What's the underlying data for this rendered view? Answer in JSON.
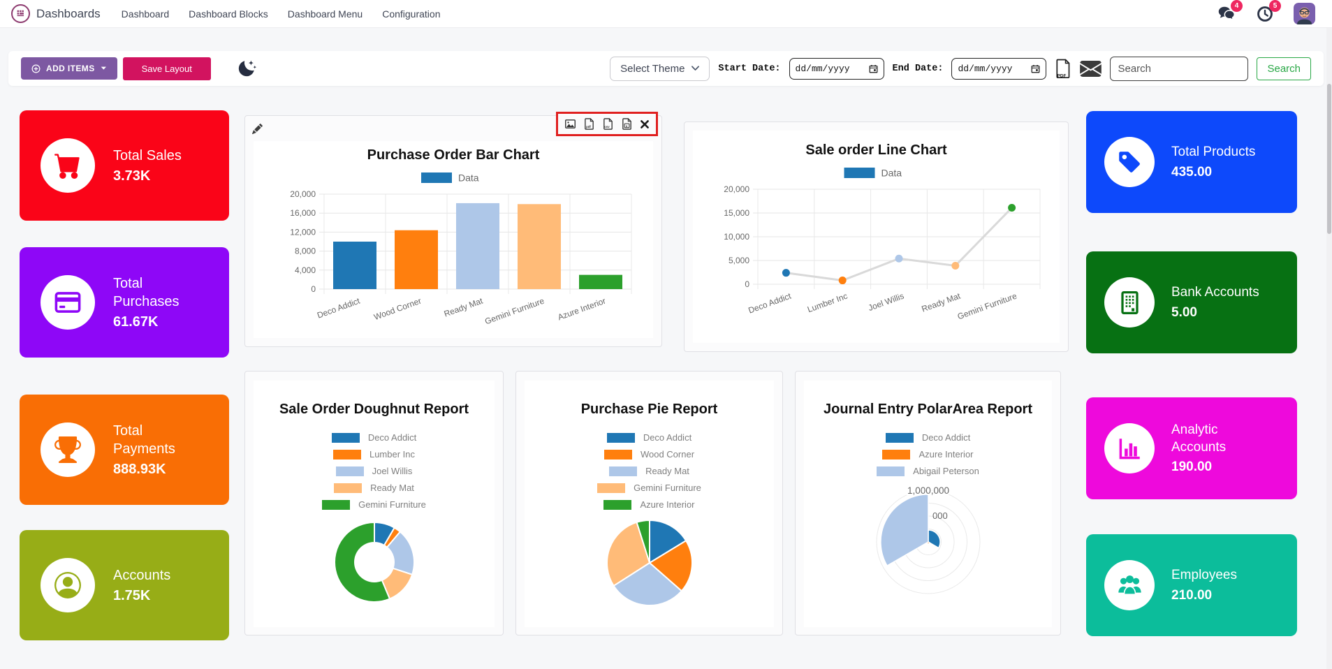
{
  "navbar": {
    "brand": "Dashboards",
    "menu": [
      "Dashboard",
      "Dashboard Blocks",
      "Dashboard Menu",
      "Configuration"
    ],
    "message_badge": "4",
    "activity_badge": "5"
  },
  "toolbar": {
    "add_items": "ADD ITEMS",
    "save_layout": "Save Layout",
    "select_theme": "Select Theme",
    "start_date_label": "Start Date:",
    "end_date_label": "End Date:",
    "date_placeholder": "dd/mm/yyyy",
    "search_placeholder": "Search",
    "search_button": "Search",
    "pdf_badge": "PDF"
  },
  "kpi_tiles": {
    "left": [
      {
        "label": "Total Sales",
        "value": "3.73K",
        "color": "#fa0418",
        "icon": "cart-icon"
      },
      {
        "label": "Total Purchases",
        "value": "61.67K",
        "color": "#8e07f7",
        "icon": "credit-card-icon"
      },
      {
        "label": "Total Payments",
        "value": "888.93K",
        "color": "#f96e05",
        "icon": "trophy-icon"
      },
      {
        "label": "Accounts",
        "value": "1.75K",
        "color": "#97ad17",
        "icon": "person-icon"
      }
    ],
    "right": [
      {
        "label": "Total Products",
        "value": "435.00",
        "color": "#0d49fb",
        "icon": "tag-icon"
      },
      {
        "label": "Bank Accounts",
        "value": "5.00",
        "color": "#077113",
        "icon": "bank-icon"
      },
      {
        "label": "Analytic Accounts",
        "value": "190.00",
        "color": "#ee09dc",
        "icon": "chart-bars-icon"
      },
      {
        "label": "Employees",
        "value": "210.00",
        "color": "#0cbd9b",
        "icon": "people-icon"
      }
    ]
  },
  "chart_data": [
    {
      "id": "purchase_bar",
      "type": "bar",
      "title": "Purchase Order Bar Chart",
      "legend": [
        "Data"
      ],
      "legend_color": "#1f77b4",
      "categories": [
        "Deco Addict",
        "Wood Corner",
        "Ready Mat",
        "Gemini Furniture",
        "Azure Interior"
      ],
      "values": [
        10000,
        12400,
        18100,
        17900,
        3000
      ],
      "colors": [
        "#1f77b4",
        "#ff7f0e",
        "#aec7e8",
        "#ffbb78",
        "#2ca02c"
      ],
      "ylim": [
        0,
        20000
      ],
      "ytick_labels": [
        "0",
        "4,000",
        "8,000",
        "12,000",
        "16,000",
        "20,000"
      ],
      "grid": true,
      "legend_position": "top"
    },
    {
      "id": "sale_line",
      "type": "line",
      "title": "Sale order Line Chart",
      "legend": [
        "Data"
      ],
      "legend_color": "#1f77b4",
      "categories": [
        "Deco Addict",
        "Lumber Inc",
        "Joel Willis",
        "Ready Mat",
        "Gemini Furniture"
      ],
      "values": [
        2400,
        800,
        5400,
        3900,
        16100
      ],
      "point_colors": [
        "#1f77b4",
        "#ff7f0e",
        "#aec7e8",
        "#ffbb78",
        "#2ca02c"
      ],
      "line_color": "#d9d9d9",
      "ylim": [
        0,
        20000
      ],
      "ytick_labels": [
        "0",
        "5,000",
        "10,000",
        "15,000",
        "20,000"
      ],
      "grid": true,
      "legend_position": "top"
    },
    {
      "id": "sale_doughnut",
      "type": "doughnut",
      "title": "Sale Order Doughnut Report",
      "categories": [
        "Deco Addict",
        "Lumber Inc",
        "Joel Willis",
        "Ready Mat",
        "Gemini Furniture"
      ],
      "values": [
        2400,
        800,
        5400,
        3900,
        16100
      ],
      "colors": [
        "#1f77b4",
        "#ff7f0e",
        "#aec7e8",
        "#ffbb78",
        "#2ca02c"
      ],
      "legend_position": "top"
    },
    {
      "id": "purchase_pie",
      "type": "pie",
      "title": "Purchase Pie Report",
      "categories": [
        "Deco Addict",
        "Wood Corner",
        "Ready Mat",
        "Gemini Furniture",
        "Azure Interior"
      ],
      "values": [
        10000,
        12400,
        18100,
        17900,
        3000
      ],
      "colors": [
        "#1f77b4",
        "#ff7f0e",
        "#aec7e8",
        "#ffbb78",
        "#2ca02c"
      ],
      "legend_position": "top"
    },
    {
      "id": "journal_polar",
      "type": "polarArea",
      "title": "Journal Entry PolarArea Report",
      "categories": [
        "Deco Addict",
        "Azure Interior",
        "Abigail Peterson"
      ],
      "values": [
        230000,
        35000,
        920000
      ],
      "colors": [
        "#1f77b4",
        "#ff7f0e",
        "#aec7e8"
      ],
      "rlim": [
        0,
        1000000
      ],
      "rtick_labels": [
        "1,000,000",
        "000"
      ],
      "legend_position": "top"
    }
  ]
}
